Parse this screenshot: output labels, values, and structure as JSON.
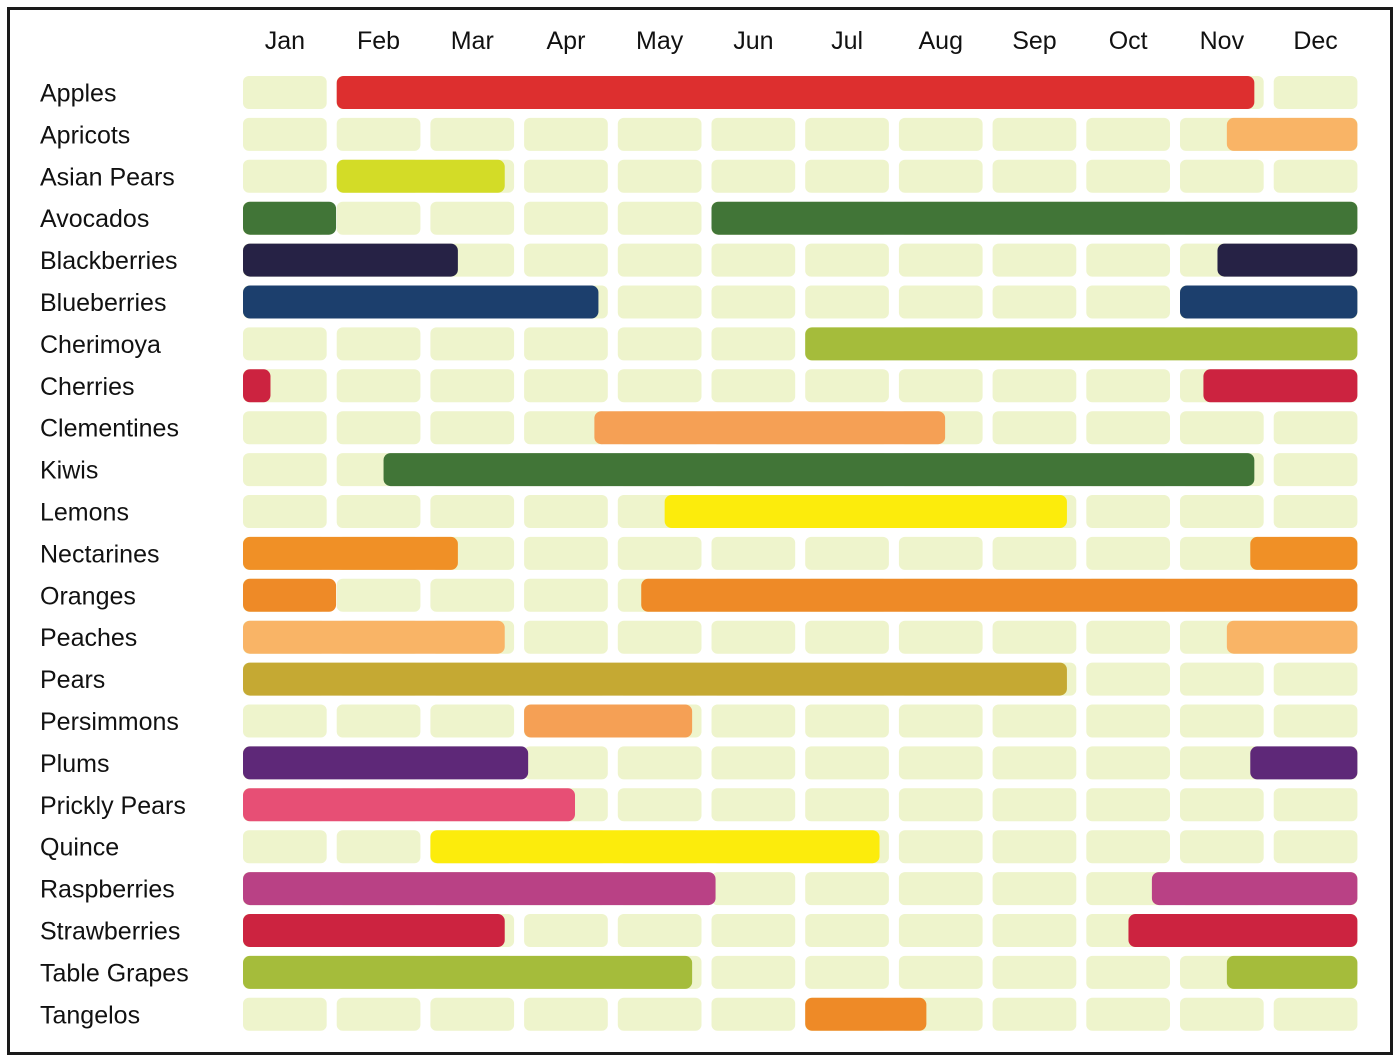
{
  "chart_data": {
    "type": "table",
    "title": "",
    "months": [
      "Jan",
      "Feb",
      "Mar",
      "Apr",
      "May",
      "Jun",
      "Jul",
      "Aug",
      "Sep",
      "Oct",
      "Nov",
      "Dec"
    ],
    "empty_cell_color": "#eef4cc",
    "rows": [
      {
        "name": "Apples",
        "color": "#dd2f2f",
        "bars": [
          [
            2.0,
            11.9
          ]
        ]
      },
      {
        "name": "Apricots",
        "color": "#f9b466",
        "bars": [
          [
            11.5,
            13.0
          ]
        ]
      },
      {
        "name": "Asian Pears",
        "color": "#d3dc27",
        "bars": [
          [
            2.0,
            3.9
          ]
        ]
      },
      {
        "name": "Avocados",
        "color": "#417537",
        "bars": [
          [
            1.0,
            2.1
          ],
          [
            6.0,
            13.0
          ]
        ]
      },
      {
        "name": "Blackberries",
        "color": "#262245",
        "bars": [
          [
            1.0,
            3.4
          ],
          [
            11.4,
            13.0
          ]
        ]
      },
      {
        "name": "Blueberries",
        "color": "#1c3f6d",
        "bars": [
          [
            1.0,
            4.9
          ],
          [
            11.0,
            13.0
          ]
        ]
      },
      {
        "name": "Cherimoya",
        "color": "#a5bc3b",
        "bars": [
          [
            7.0,
            13.0
          ]
        ]
      },
      {
        "name": "Cherries",
        "color": "#cc2340",
        "bars": [
          [
            1.0,
            1.4
          ],
          [
            11.25,
            13.0
          ]
        ]
      },
      {
        "name": "Clementines",
        "color": "#f5a055",
        "bars": [
          [
            4.75,
            8.6
          ]
        ]
      },
      {
        "name": "Kiwis",
        "color": "#417537",
        "bars": [
          [
            2.5,
            11.9
          ]
        ]
      },
      {
        "name": "Lemons",
        "color": "#fcec0c",
        "bars": [
          [
            5.5,
            9.9
          ]
        ]
      },
      {
        "name": "Nectarines",
        "color": "#f09026",
        "bars": [
          [
            1.0,
            3.4
          ],
          [
            11.75,
            13.0
          ]
        ]
      },
      {
        "name": "Oranges",
        "color": "#ee8a27",
        "bars": [
          [
            1.0,
            2.1
          ],
          [
            5.25,
            13.0
          ]
        ]
      },
      {
        "name": "Peaches",
        "color": "#f9b466",
        "bars": [
          [
            1.0,
            3.9
          ],
          [
            11.5,
            13.0
          ]
        ]
      },
      {
        "name": "Pears",
        "color": "#c5a933",
        "bars": [
          [
            1.0,
            9.9
          ]
        ]
      },
      {
        "name": "Persimmons",
        "color": "#f5a055",
        "bars": [
          [
            4.0,
            5.9
          ]
        ]
      },
      {
        "name": "Plums",
        "color": "#5e2878",
        "bars": [
          [
            1.0,
            4.15
          ],
          [
            11.75,
            13.0
          ]
        ]
      },
      {
        "name": "Prickly Pears",
        "color": "#e74f75",
        "bars": [
          [
            1.0,
            4.65
          ]
        ]
      },
      {
        "name": "Quince",
        "color": "#fcec0c",
        "bars": [
          [
            3.0,
            7.9
          ]
        ]
      },
      {
        "name": "Raspberries",
        "color": "#b94185",
        "bars": [
          [
            1.0,
            6.15
          ],
          [
            10.7,
            13.0
          ]
        ]
      },
      {
        "name": "Strawberries",
        "color": "#cc2340",
        "bars": [
          [
            1.0,
            3.9
          ],
          [
            10.45,
            13.0
          ]
        ]
      },
      {
        "name": "Table Grapes",
        "color": "#a5bc3b",
        "bars": [
          [
            1.0,
            5.9
          ],
          [
            11.5,
            13.0
          ]
        ]
      },
      {
        "name": "Tangelos",
        "color": "#ee8a27",
        "bars": [
          [
            7.0,
            8.4
          ]
        ]
      }
    ]
  }
}
